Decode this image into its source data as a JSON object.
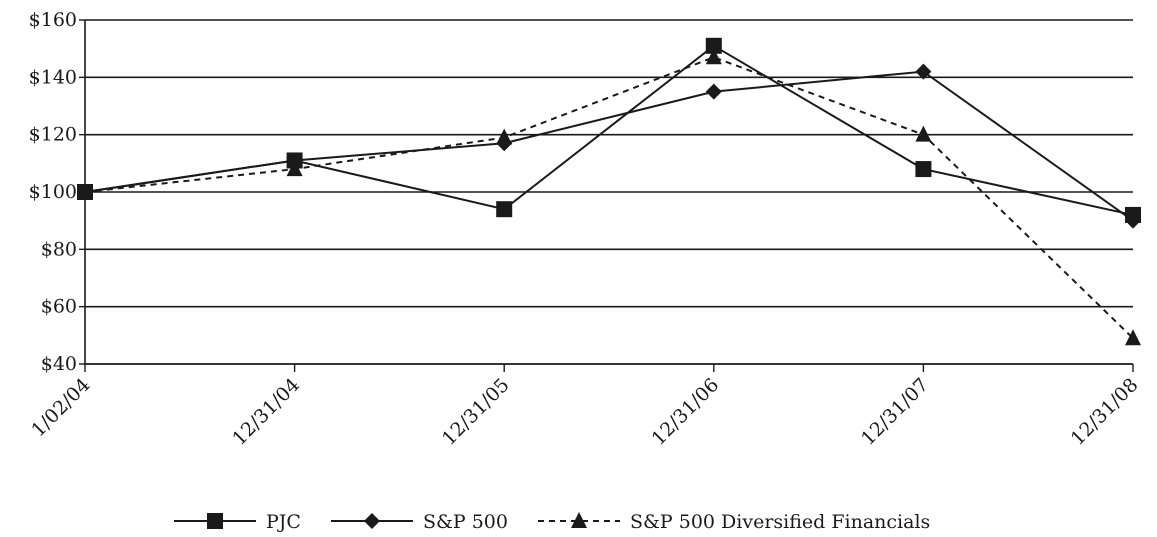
{
  "chart_data": {
    "type": "line",
    "title": "",
    "xlabel": "",
    "ylabel": "",
    "categories": [
      "1/02/04",
      "12/31/04",
      "12/31/05",
      "12/31/06",
      "12/31/07",
      "12/31/08"
    ],
    "ylim": [
      40,
      160
    ],
    "y_ticks": [
      40,
      60,
      80,
      100,
      120,
      140,
      160
    ],
    "y_tick_labels": [
      "$40",
      "$60",
      "$80",
      "$100",
      "$120",
      "$140",
      "$160"
    ],
    "grid": "horizontal",
    "legend_position": "bottom",
    "series": [
      {
        "name": "PJC",
        "values": [
          100,
          111,
          94,
          151,
          108,
          92
        ],
        "marker": "square",
        "dash": "solid",
        "color": "#1a1a1a"
      },
      {
        "name": "S&P 500",
        "values": [
          100,
          111,
          117,
          135,
          142,
          90
        ],
        "marker": "diamond",
        "dash": "solid",
        "color": "#1a1a1a"
      },
      {
        "name": "S&P 500 Diversified Financials",
        "values": [
          100,
          108,
          119,
          147,
          120,
          49
        ],
        "marker": "triangle",
        "dash": "dashed",
        "color": "#1a1a1a"
      }
    ]
  }
}
